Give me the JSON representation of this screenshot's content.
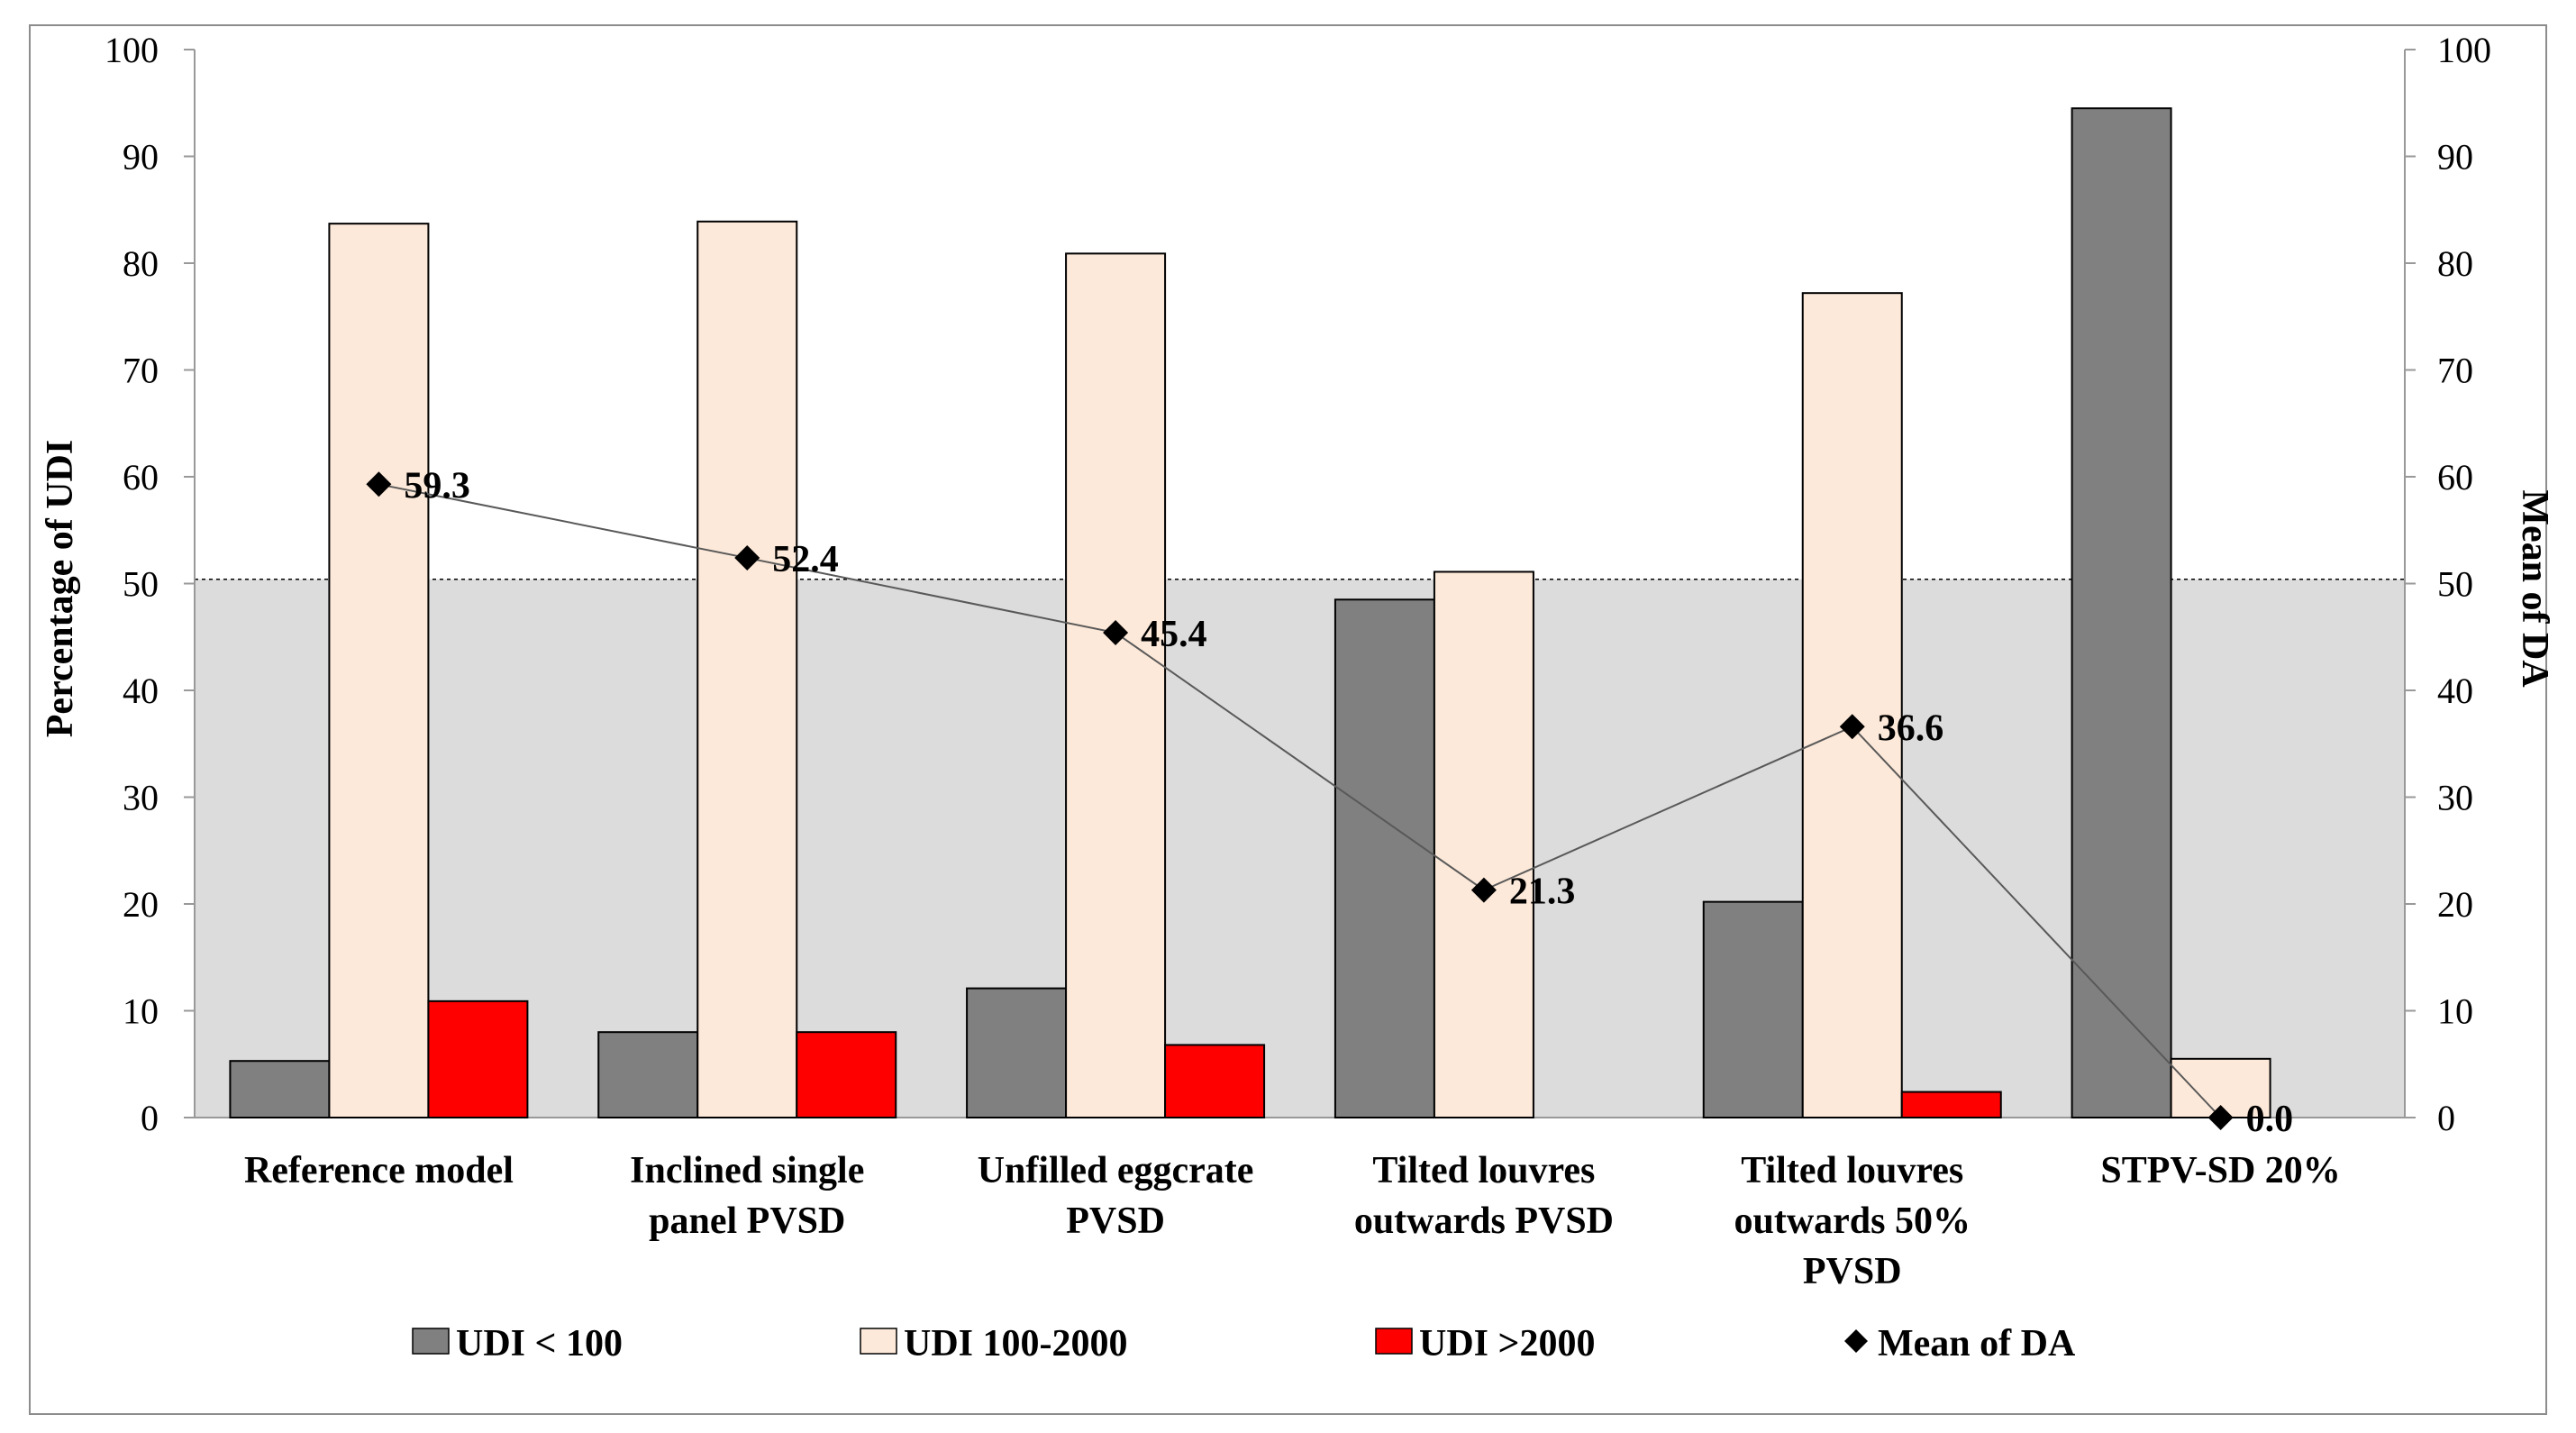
{
  "chart_data": {
    "type": "bar",
    "categories": [
      [
        "Reference model"
      ],
      [
        "Inclined single",
        "panel PVSD"
      ],
      [
        "Unfilled eggcrate",
        "PVSD"
      ],
      [
        "Tilted louvres",
        "outwards PVSD"
      ],
      [
        "Tilted louvres",
        "outwards 50%",
        "PVSD"
      ],
      [
        "STPV-SD 20%"
      ]
    ],
    "series": [
      {
        "name": "UDI < 100",
        "values": [
          5.3,
          8.0,
          12.1,
          48.5,
          20.2,
          94.5
        ],
        "color": "#808080"
      },
      {
        "name": "UDI 100-2000",
        "values": [
          83.7,
          83.9,
          80.9,
          51.1,
          77.2,
          5.5
        ],
        "color": "#fde9d9"
      },
      {
        "name": "UDI >2000",
        "values": [
          10.9,
          8.0,
          6.8,
          0.0,
          2.4,
          0.0
        ],
        "color": "#ff0000"
      }
    ],
    "line_series": {
      "name": "Mean of DA",
      "values": [
        59.3,
        52.4,
        45.4,
        21.3,
        36.6,
        0.0
      ],
      "labels": [
        "59.3",
        "52.4",
        "45.4",
        "21.3",
        "36.6",
        "0.0"
      ],
      "marker": "diamond",
      "color": "#000000"
    },
    "ylabel": "Percentage of UDI",
    "y2label": "Mean of DA",
    "ylim": [
      0,
      100
    ],
    "y2lim": [
      0,
      100
    ],
    "yticks": [
      0,
      10,
      20,
      30,
      40,
      50,
      60,
      70,
      80,
      90,
      100
    ],
    "threshold_band": {
      "from": 0,
      "to": 50.4,
      "color": "#dcdcdc"
    },
    "legend_position": "bottom"
  }
}
